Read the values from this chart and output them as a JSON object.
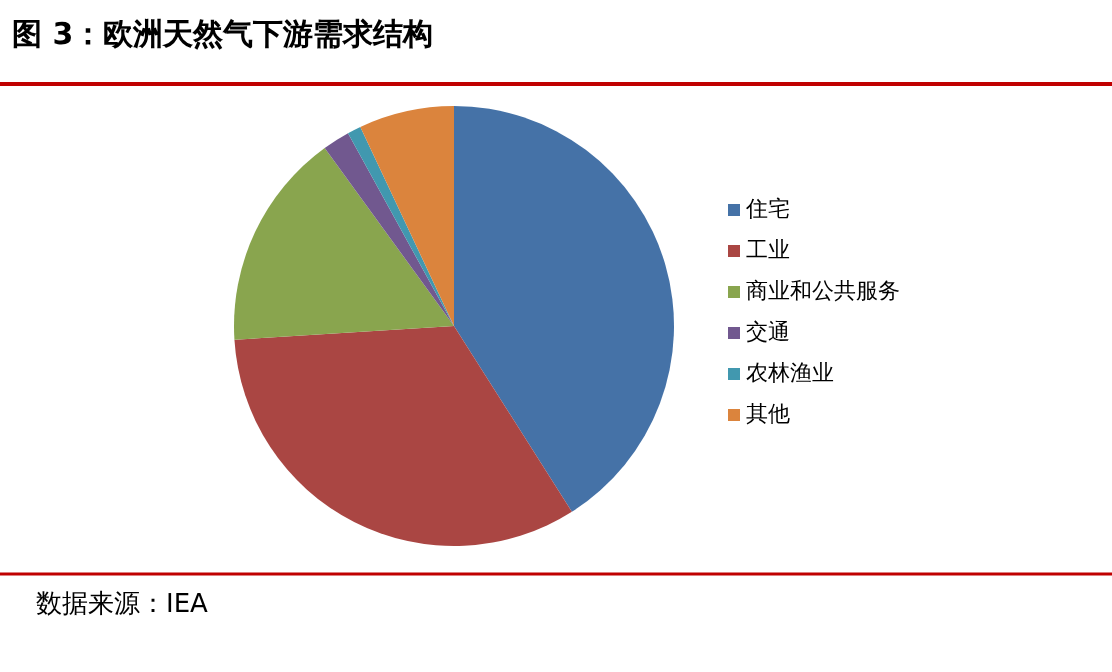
{
  "chart_data": {
    "type": "pie",
    "title": "图 3：欧洲天然气下游需求结构",
    "categories": [
      "住宅",
      "工业",
      "商业和公共服务",
      "交通",
      "农林渔业",
      "其他"
    ],
    "values": [
      41,
      33,
      16,
      2,
      1,
      7
    ],
    "colors": [
      "#4572a7",
      "#aa4643",
      "#89a54e",
      "#71588f",
      "#4198af",
      "#db843d"
    ],
    "legend": "right",
    "annotations": [
      "数据来源：IEA"
    ]
  }
}
